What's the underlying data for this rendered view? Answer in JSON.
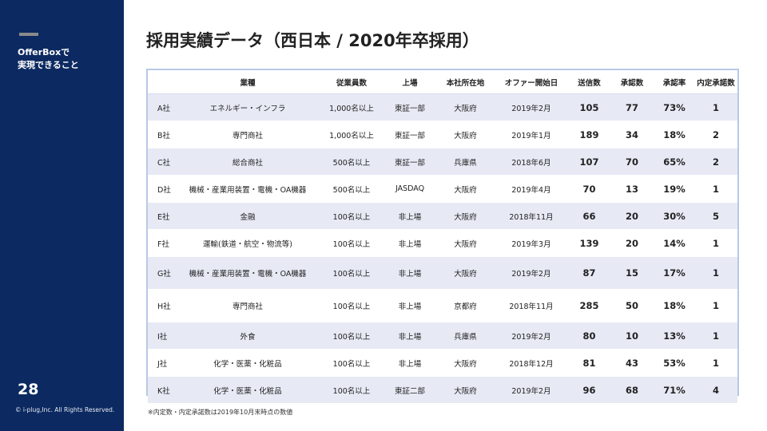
{
  "sidebar": {
    "label": "OfferBoxで\n実現できること",
    "page_number": "28",
    "copyright": "© i-plug,Inc. All Rights Reserved."
  },
  "page_title": "採用実績データ（西日本 / 2020年卒採用）",
  "table": {
    "headers": [
      "",
      "業種",
      "従業員数",
      "上場",
      "本社所在地",
      "オファー開始日",
      "送信数",
      "承認数",
      "承認率",
      "内定承諾数"
    ],
    "rows": [
      [
        "A社",
        "エネルギー・インフラ",
        "1,000名以上",
        "東証一部",
        "大阪府",
        "2019年2月",
        "105",
        "77",
        "73%",
        "1"
      ],
      [
        "B社",
        "専門商社",
        "1,000名以上",
        "東証一部",
        "大阪府",
        "2019年1月",
        "189",
        "34",
        "18%",
        "2"
      ],
      [
        "C社",
        "総合商社",
        "500名以上",
        "東証一部",
        "兵庫県",
        "2018年6月",
        "107",
        "70",
        "65%",
        "2"
      ],
      [
        "D社",
        "機械・産業用装置・電機・OA機器",
        "500名以上",
        "JASDAQ",
        "大阪府",
        "2019年4月",
        "70",
        "13",
        "19%",
        "1"
      ],
      [
        "E社",
        "金融",
        "100名以上",
        "非上場",
        "大阪府",
        "2018年11月",
        "66",
        "20",
        "30%",
        "5"
      ],
      [
        "F社",
        "運輸(鉄道・航空・物流等)",
        "100名以上",
        "非上場",
        "大阪府",
        "2019年3月",
        "139",
        "20",
        "14%",
        "1"
      ],
      [
        "G社",
        "機械・産業用装置・電機・OA機器",
        "100名以上",
        "非上場",
        "大阪府",
        "2019年2月",
        "87",
        "15",
        "17%",
        "1"
      ],
      [
        "H社",
        "専門商社",
        "100名以上",
        "非上場",
        "京都府",
        "2018年11月",
        "285",
        "50",
        "18%",
        "1"
      ],
      [
        "I社",
        "外食",
        "100名以上",
        "非上場",
        "兵庫県",
        "2019年2月",
        "80",
        "10",
        "13%",
        "1"
      ],
      [
        "J社",
        "化学・医薬・化粧品",
        "100名以上",
        "非上場",
        "大阪府",
        "2018年12月",
        "81",
        "43",
        "53%",
        "1"
      ],
      [
        "K社",
        "化学・医薬・化粧品",
        "100名以上",
        "東証二部",
        "大阪府",
        "2019年2月",
        "96",
        "68",
        "71%",
        "4"
      ]
    ]
  },
  "footnote": "※内定数・内定承諾数は2019年10月末時点の数値"
}
